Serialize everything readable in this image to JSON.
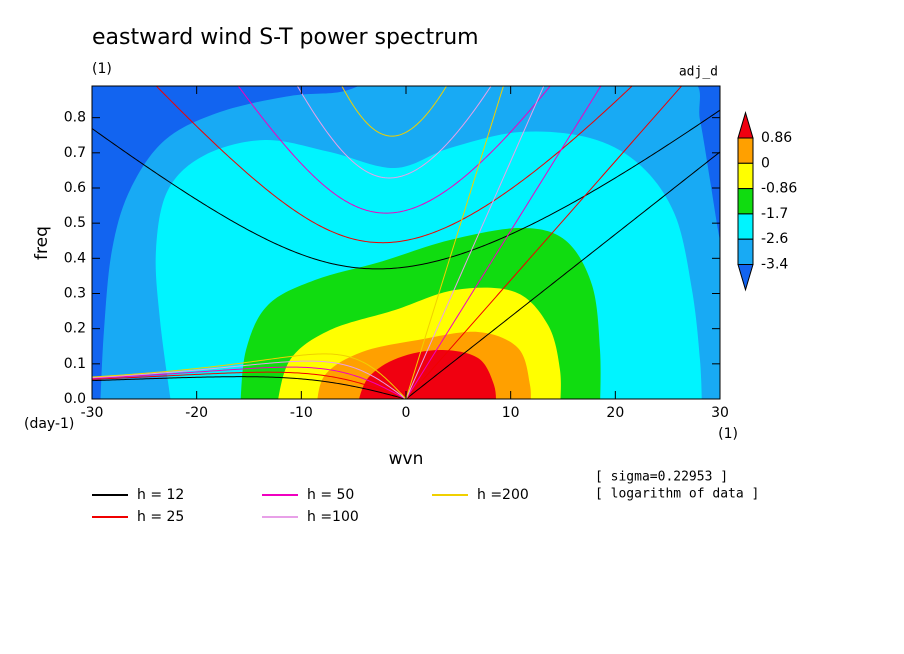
{
  "chart_data": {
    "type": "contour",
    "title": "eastward wind S-T power spectrum",
    "subtitle": "(1)",
    "corner_label": "adj_d",
    "ylabel": "freq",
    "xlabel": "wvn",
    "yunit": "(day-1)",
    "xunit": "(1)",
    "annotations": [
      "[ sigma=0.22953 ]",
      "[ logarithm of data ]"
    ],
    "xlim": [
      -30,
      30
    ],
    "ylim": [
      0,
      0.89
    ],
    "xticks": [
      -30,
      -20,
      -10,
      0,
      10,
      20,
      30
    ],
    "yticks": [
      {
        "value": 0,
        "label": "0.0"
      },
      0.1,
      0.2,
      0.3,
      0.4,
      0.5,
      0.6,
      0.7,
      0.8
    ],
    "colorbar": {
      "levels": [
        0.86,
        0,
        -0.86,
        -1.7,
        -2.6,
        -3.4
      ],
      "colors": [
        "#f00010",
        "#ffa000",
        "#ffff00",
        "#10dc10",
        "#00f4ff",
        "#18aaf4",
        "#1264f0"
      ]
    },
    "series": [
      {
        "name": "h = 12",
        "h": 12,
        "color": "#000000"
      },
      {
        "name": "h = 25",
        "h": 25,
        "color": "#f00000"
      },
      {
        "name": "h = 50",
        "h": 50,
        "color": "#f000c0"
      },
      {
        "name": "h =100",
        "h": 100,
        "color": "#e8a0e8"
      },
      {
        "name": "h =200",
        "h": 200,
        "color": "#f0d000"
      }
    ]
  }
}
